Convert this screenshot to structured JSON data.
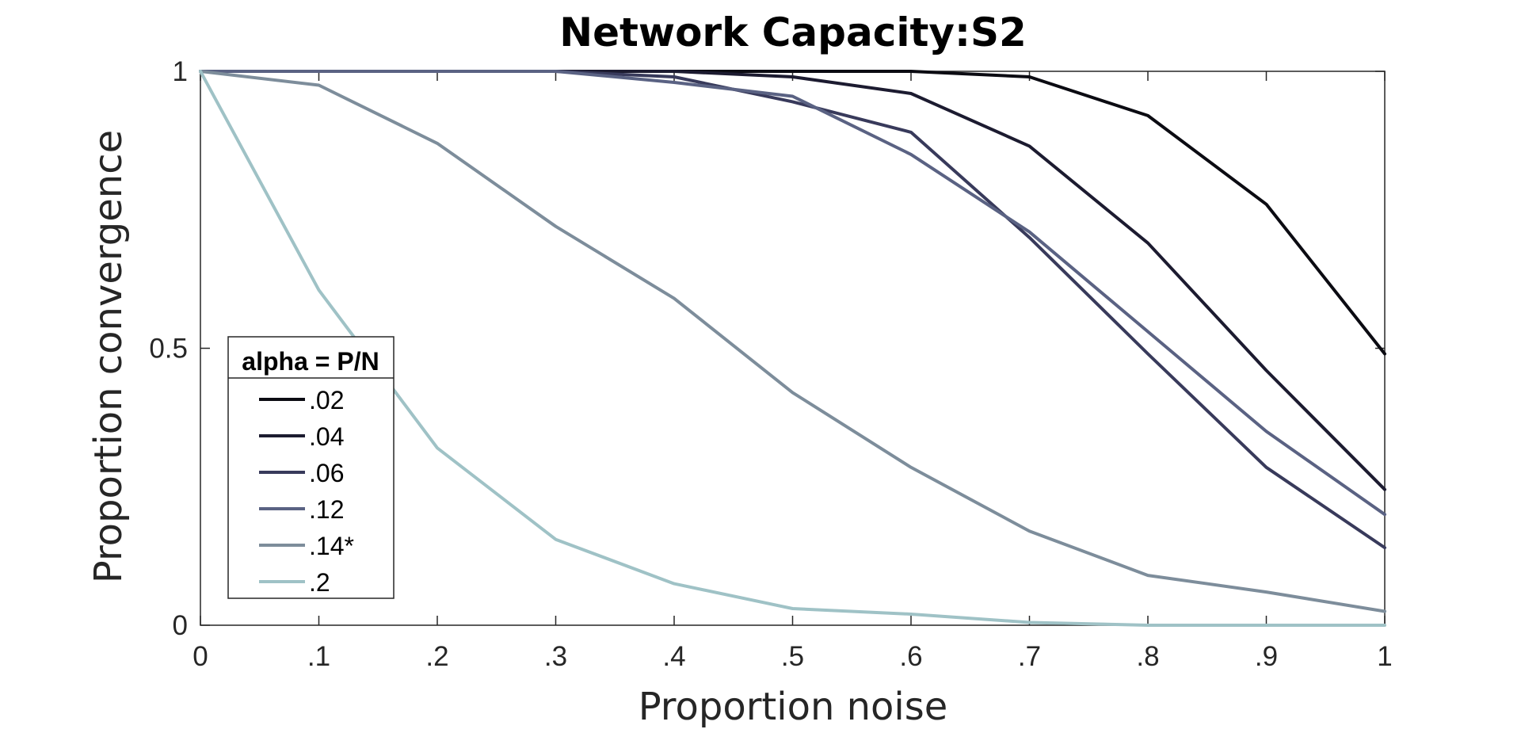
{
  "chart_data": {
    "type": "line",
    "title": "Network Capacity:S2",
    "xlabel": "Proportion noise",
    "ylabel": "Proportion convergence",
    "x": [
      0,
      0.1,
      0.2,
      0.3,
      0.4,
      0.5,
      0.6,
      0.7,
      0.8,
      0.9,
      1.0
    ],
    "xlim": [
      0,
      1
    ],
    "ylim": [
      0,
      1
    ],
    "x_tick_values": [
      0,
      0.1,
      0.2,
      0.3,
      0.4,
      0.5,
      0.6,
      0.7,
      0.8,
      0.9,
      1.0
    ],
    "x_tick_labels": [
      "0",
      ".1",
      ".2",
      ".3",
      ".4",
      ".5",
      ".6",
      ".7",
      ".8",
      ".9",
      "1"
    ],
    "y_tick_values": [
      0,
      0.5,
      1
    ],
    "y_tick_labels": [
      "0",
      "0.5",
      "1"
    ],
    "grid": false,
    "legend": {
      "title": "alpha = P/N",
      "position": "left"
    },
    "series": [
      {
        "name": ".02",
        "color": "#0b0b12",
        "values": [
          1.0,
          1.0,
          1.0,
          1.0,
          1.0,
          1.0,
          1.0,
          0.99,
          0.92,
          0.76,
          0.49
        ]
      },
      {
        "name": ".04",
        "color": "#1c1b30",
        "values": [
          1.0,
          1.0,
          1.0,
          1.0,
          1.0,
          0.99,
          0.96,
          0.865,
          0.69,
          0.46,
          0.245
        ]
      },
      {
        "name": ".06",
        "color": "#383a5b",
        "values": [
          1.0,
          1.0,
          1.0,
          1.0,
          0.99,
          0.945,
          0.89,
          0.7,
          0.49,
          0.285,
          0.14
        ]
      },
      {
        "name": ".12",
        "color": "#5a6283",
        "values": [
          1.0,
          1.0,
          1.0,
          1.0,
          0.98,
          0.955,
          0.85,
          0.71,
          0.53,
          0.35,
          0.2
        ]
      },
      {
        "name": ".14*",
        "color": "#7d8d9b",
        "values": [
          1.0,
          0.975,
          0.87,
          0.72,
          0.59,
          0.42,
          0.285,
          0.17,
          0.09,
          0.06,
          0.025
        ]
      },
      {
        "name": ".2",
        "color": "#9fc2c6",
        "values": [
          1.0,
          0.605,
          0.32,
          0.155,
          0.075,
          0.03,
          0.02,
          0.005,
          0.0,
          0.0,
          0.0
        ]
      }
    ]
  }
}
